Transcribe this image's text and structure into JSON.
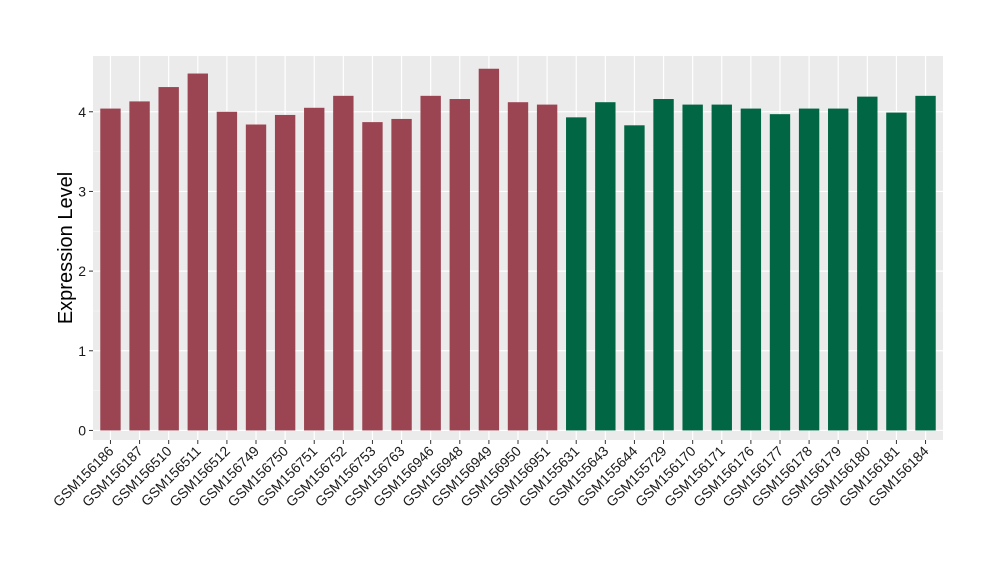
{
  "chart_data": {
    "type": "bar",
    "title": "",
    "xlabel": "",
    "ylabel": "Expression Level",
    "ylim": [
      -0.12,
      4.7
    ],
    "yticks": [
      0,
      1,
      2,
      3,
      4
    ],
    "grid": true,
    "legend": "none",
    "colors": {
      "group_a": "#9b4452",
      "group_b": "#006643",
      "panel_bg": "#ebebeb",
      "grid_major": "#ffffff",
      "grid_minor": "#f5f5f5"
    },
    "categories": [
      "GSM156186",
      "GSM156187",
      "GSM156510",
      "GSM156511",
      "GSM156512",
      "GSM156749",
      "GSM156750",
      "GSM156751",
      "GSM156752",
      "GSM156753",
      "GSM156763",
      "GSM156946",
      "GSM156948",
      "GSM156949",
      "GSM156950",
      "GSM156951",
      "GSM155631",
      "GSM155643",
      "GSM155644",
      "GSM155729",
      "GSM156170",
      "GSM156171",
      "GSM156176",
      "GSM156177",
      "GSM156178",
      "GSM156179",
      "GSM156180",
      "GSM156181",
      "GSM156184"
    ],
    "values": [
      4.04,
      4.13,
      4.31,
      4.48,
      4.0,
      3.84,
      3.96,
      4.05,
      4.2,
      3.87,
      3.91,
      4.2,
      4.16,
      4.54,
      4.12,
      4.09,
      3.93,
      4.12,
      3.83,
      4.16,
      4.09,
      4.09,
      4.04,
      3.97,
      4.04,
      4.04,
      4.19,
      3.99,
      4.2
    ],
    "groups": [
      "a",
      "a",
      "a",
      "a",
      "a",
      "a",
      "a",
      "a",
      "a",
      "a",
      "a",
      "a",
      "a",
      "a",
      "a",
      "a",
      "b",
      "b",
      "b",
      "b",
      "b",
      "b",
      "b",
      "b",
      "b",
      "b",
      "b",
      "b",
      "b"
    ]
  }
}
